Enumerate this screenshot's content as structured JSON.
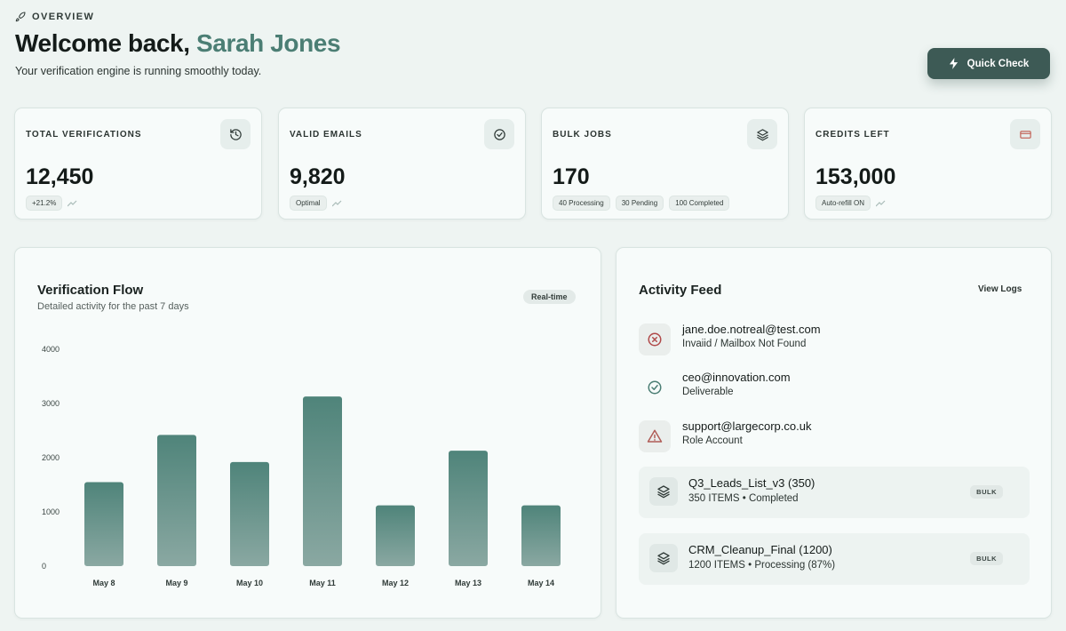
{
  "header": {
    "section_label": "OVERVIEW",
    "greeting": "Welcome back,",
    "user_name": "Sarah Jones",
    "subtitle": "Your verification engine is running smoothly today.",
    "quick_check_label": "Quick Check"
  },
  "stats": [
    {
      "label": "TOTAL VERIFICATIONS",
      "value": "12,450",
      "icon": "history-icon",
      "chips": [
        "+21.2%"
      ],
      "trend": true
    },
    {
      "label": "VALID EMAILS",
      "value": "9,820",
      "icon": "check-circle-icon",
      "chips": [
        "Optimal"
      ],
      "trend": true
    },
    {
      "label": "BULK JOBS",
      "value": "170",
      "icon": "layers-icon",
      "chips": [
        "40 Processing",
        "30 Pending",
        "100 Completed"
      ],
      "trend": false
    },
    {
      "label": "CREDITS LEFT",
      "value": "153,000",
      "icon": "credit-card-icon",
      "chips": [
        "Auto-refill ON"
      ],
      "trend": true
    }
  ],
  "chart": {
    "title": "Verification Flow",
    "subtitle": "Detailed activity for the past 7 days",
    "badge": "Real-time"
  },
  "chart_data": {
    "type": "bar",
    "categories": [
      "May 8",
      "May 9",
      "May 10",
      "May 11",
      "May 12",
      "May 13",
      "May 14"
    ],
    "values": [
      1550,
      2420,
      1920,
      3130,
      1120,
      2130,
      1120
    ],
    "yticks": [
      0,
      1000,
      2000,
      3000,
      4000
    ],
    "ylim": [
      0,
      4000
    ],
    "grid": false,
    "bar_color_top": "#4f847a",
    "bar_color_bottom": "#8aa8a2"
  },
  "activity": {
    "title": "Activity Feed",
    "view_logs_label": "View Logs",
    "items": [
      {
        "email": "jane.doe.notreal@test.com",
        "status": "Invaiid / Mailbox Not Found",
        "icon": "x-circle-icon",
        "color": "#b04a4a",
        "bg": "#eaeeec"
      },
      {
        "email": "ceo@innovation.com",
        "status": "Deliverable",
        "icon": "check-circle-icon",
        "color": "#4b7e74",
        "bg": "transparent"
      },
      {
        "email": "support@largecorp.co.uk",
        "status": "Role Account",
        "icon": "warning-icon",
        "color": "#b05c56",
        "bg": "#eaeeec"
      }
    ],
    "bulk": [
      {
        "name": "Q3_Leads_List_v3 (350)",
        "detail": "350 ITEMS • Completed",
        "badge": "BULK"
      },
      {
        "name": "CRM_Cleanup_Final (1200)",
        "detail": "1200 ITEMS • Processing (87%)",
        "badge": "BULK"
      }
    ]
  },
  "colors": {
    "accent": "#4b7e74",
    "button": "#3d5a55",
    "background": "#eef4f2"
  }
}
